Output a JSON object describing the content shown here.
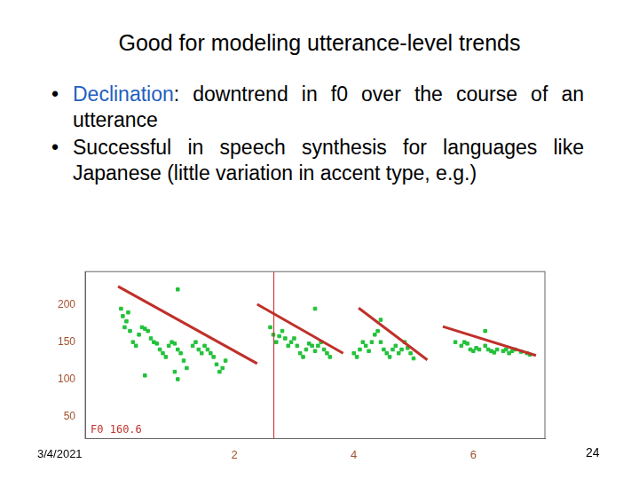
{
  "slide": {
    "title": "Good for modeling utterance-level trends",
    "bullets": [
      {
        "term": "Declination",
        "text": ": downtrend in f0 over the course of an utterance"
      },
      {
        "text": "Successful in speech synthesis for languages like Japanese (little variation in accent type, e.g.)"
      }
    ],
    "date": "3/4/2021",
    "page": "24"
  },
  "chart_data": {
    "type": "scatter",
    "xlim": [
      -0.5,
      7.2
    ],
    "xticks": [
      2,
      4,
      6
    ],
    "ylim": [
      20,
      245
    ],
    "yticks": [
      50,
      100,
      150,
      200
    ],
    "grid": false,
    "annotations": [
      {
        "text": "F0 160.6"
      }
    ],
    "vlines": [
      2.66
    ],
    "series": [
      {
        "type": "scatter",
        "color": "#22c23a",
        "marker": "square",
        "x": [
          0.1,
          0.13,
          0.16,
          0.19,
          0.22,
          0.25,
          0.3,
          0.35,
          0.4,
          0.45,
          0.5,
          0.55,
          0.6,
          0.65,
          0.7,
          0.75,
          0.8,
          0.85,
          0.9,
          0.95,
          1.0,
          1.05,
          1.1,
          1.15,
          1.2,
          1.3,
          1.35,
          1.4,
          1.45,
          1.5,
          1.55,
          1.6,
          1.65,
          1.7,
          1.75,
          1.8,
          1.85,
          0.5,
          1.0,
          1.05,
          1.05,
          2.6,
          2.65,
          2.7,
          2.75,
          2.8,
          2.85,
          2.9,
          2.95,
          3.0,
          3.05,
          3.1,
          3.15,
          3.2,
          3.25,
          3.3,
          3.35,
          3.4,
          3.45,
          3.5,
          3.55,
          3.6,
          3.35,
          4.0,
          4.05,
          4.1,
          4.15,
          4.2,
          4.25,
          4.3,
          4.35,
          4.4,
          4.45,
          4.5,
          4.55,
          4.6,
          4.65,
          4.7,
          4.75,
          4.8,
          4.85,
          4.9,
          4.95,
          5.0,
          4.45,
          5.7,
          5.8,
          5.85,
          5.9,
          5.95,
          6.0,
          6.05,
          6.1,
          6.2,
          6.25,
          6.3,
          6.35,
          6.4,
          6.5,
          6.55,
          6.6,
          6.65,
          6.7,
          6.8,
          6.9,
          6.95,
          6.2
        ],
        "values": [
          195,
          185,
          170,
          178,
          190,
          165,
          150,
          145,
          160,
          170,
          168,
          165,
          155,
          150,
          148,
          140,
          135,
          130,
          145,
          150,
          148,
          140,
          135,
          125,
          115,
          145,
          150,
          140,
          135,
          145,
          140,
          135,
          130,
          120,
          110,
          115,
          125,
          105,
          110,
          100,
          221,
          170,
          160,
          150,
          158,
          165,
          155,
          145,
          150,
          155,
          145,
          135,
          130,
          140,
          148,
          145,
          138,
          145,
          150,
          140,
          135,
          130,
          195,
          135,
          130,
          140,
          150,
          145,
          138,
          150,
          160,
          165,
          150,
          140,
          135,
          130,
          140,
          145,
          135,
          140,
          150,
          142,
          135,
          128,
          180,
          150,
          145,
          150,
          148,
          140,
          138,
          142,
          140,
          145,
          140,
          138,
          136,
          140,
          138,
          140,
          135,
          138,
          140,
          137,
          135,
          133,
          165
        ]
      },
      {
        "type": "line",
        "color": "#c0302a",
        "line_style": "solid",
        "x": [
          0.05,
          2.38
        ],
        "values": [
          225,
          121
        ]
      },
      {
        "type": "line",
        "color": "#c0302a",
        "line_style": "solid",
        "x": [
          2.38,
          3.82
        ],
        "values": [
          201,
          135
        ]
      },
      {
        "type": "line",
        "color": "#c0302a",
        "line_style": "solid",
        "x": [
          4.08,
          5.23
        ],
        "values": [
          196,
          126
        ]
      },
      {
        "type": "line",
        "color": "#c0302a",
        "line_style": "solid",
        "x": [
          5.49,
          7.05
        ],
        "values": [
          171,
          132
        ]
      }
    ]
  }
}
